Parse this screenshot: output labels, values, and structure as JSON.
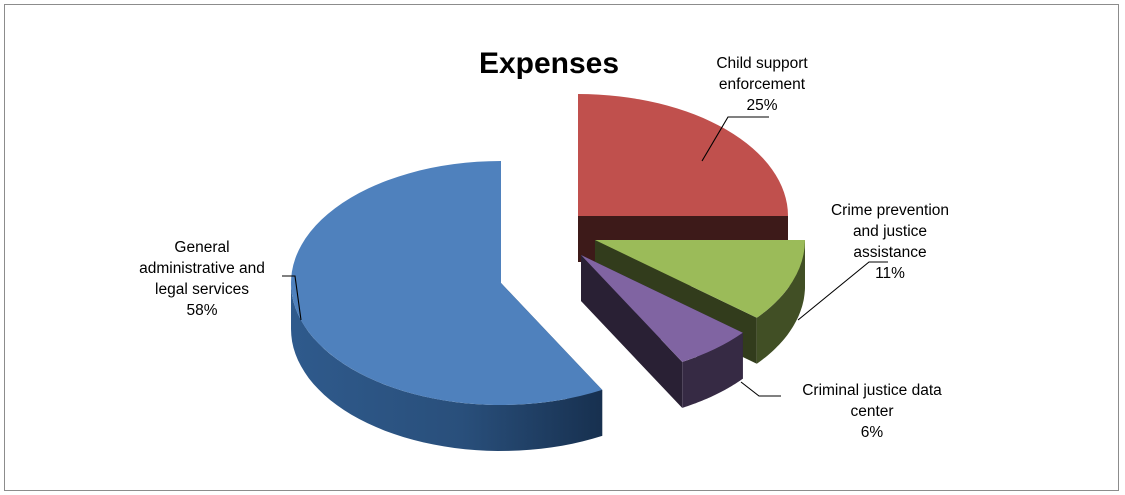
{
  "chart_data": {
    "type": "pie",
    "title": "Expenses",
    "categories": [
      "Child support enforcement",
      "Crime prevention and justice assistance",
      "Criminal justice data center",
      "General administrative and legal services"
    ],
    "values": [
      25,
      11,
      6,
      58
    ],
    "value_labels": [
      "25%",
      "11%",
      "6%",
      "58%"
    ],
    "label_lines": [
      [
        "Child support",
        "enforcement",
        "25%"
      ],
      [
        "Crime prevention",
        "and justice",
        "assistance",
        "11%"
      ],
      [
        "Criminal justice data",
        "center",
        "6%"
      ],
      [
        "General",
        "administrative and",
        "legal services",
        "58%"
      ]
    ],
    "colors": [
      "#C0504D",
      "#9BBB59",
      "#8064A2",
      "#4F81BD"
    ],
    "exploded": true,
    "three_d": true,
    "legend": "none"
  }
}
